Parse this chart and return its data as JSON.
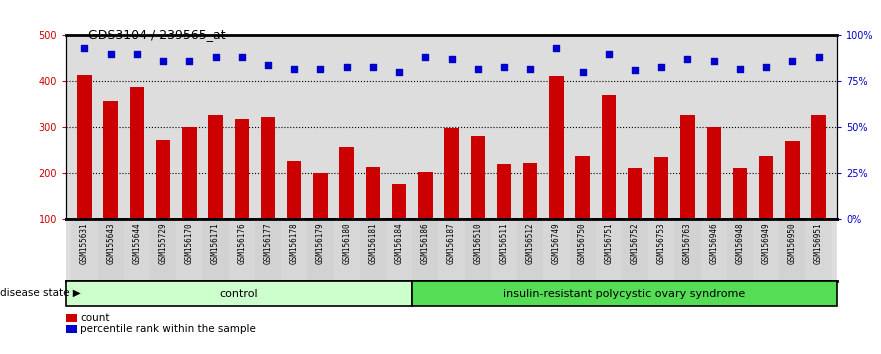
{
  "title": "GDS3104 / 239565_at",
  "samples": [
    "GSM155631",
    "GSM155643",
    "GSM155644",
    "GSM155729",
    "GSM156170",
    "GSM156171",
    "GSM156176",
    "GSM156177",
    "GSM156178",
    "GSM156179",
    "GSM156180",
    "GSM156181",
    "GSM156184",
    "GSM156186",
    "GSM156187",
    "GSM156510",
    "GSM156511",
    "GSM156512",
    "GSM156749",
    "GSM156750",
    "GSM156751",
    "GSM156752",
    "GSM156753",
    "GSM156763",
    "GSM156946",
    "GSM156948",
    "GSM156949",
    "GSM156950",
    "GSM156951"
  ],
  "bar_values": [
    415,
    358,
    388,
    272,
    300,
    328,
    318,
    323,
    228,
    202,
    258,
    215,
    178,
    203,
    298,
    282,
    220,
    222,
    412,
    237,
    370,
    212,
    235,
    328,
    300,
    212,
    238,
    270,
    328
  ],
  "percentile_values": [
    93,
    90,
    90,
    86,
    86,
    88,
    88,
    84,
    82,
    82,
    83,
    83,
    80,
    88,
    87,
    82,
    83,
    82,
    93,
    80,
    90,
    81,
    83,
    87,
    86,
    82,
    83,
    86,
    88
  ],
  "group_labels": [
    "control",
    "insulin-resistant polycystic ovary syndrome"
  ],
  "group_sizes": [
    13,
    16
  ],
  "bar_color": "#cc0000",
  "dot_color": "#0000cc",
  "ylim_left": [
    100,
    500
  ],
  "ylim_right": [
    0,
    100
  ],
  "yticks_left": [
    100,
    200,
    300,
    400,
    500
  ],
  "yticks_right": [
    0,
    25,
    50,
    75,
    100
  ],
  "ytick_labels_right": [
    "0%",
    "25%",
    "50%",
    "75%",
    "100%"
  ],
  "grid_values": [
    200,
    300,
    400
  ],
  "bg_color": "#dddddd",
  "control_color": "#ccffcc",
  "disease_color": "#55dd55",
  "legend_count_label": "count",
  "legend_percentile_label": "percentile rank within the sample",
  "disease_state_label": "disease state"
}
